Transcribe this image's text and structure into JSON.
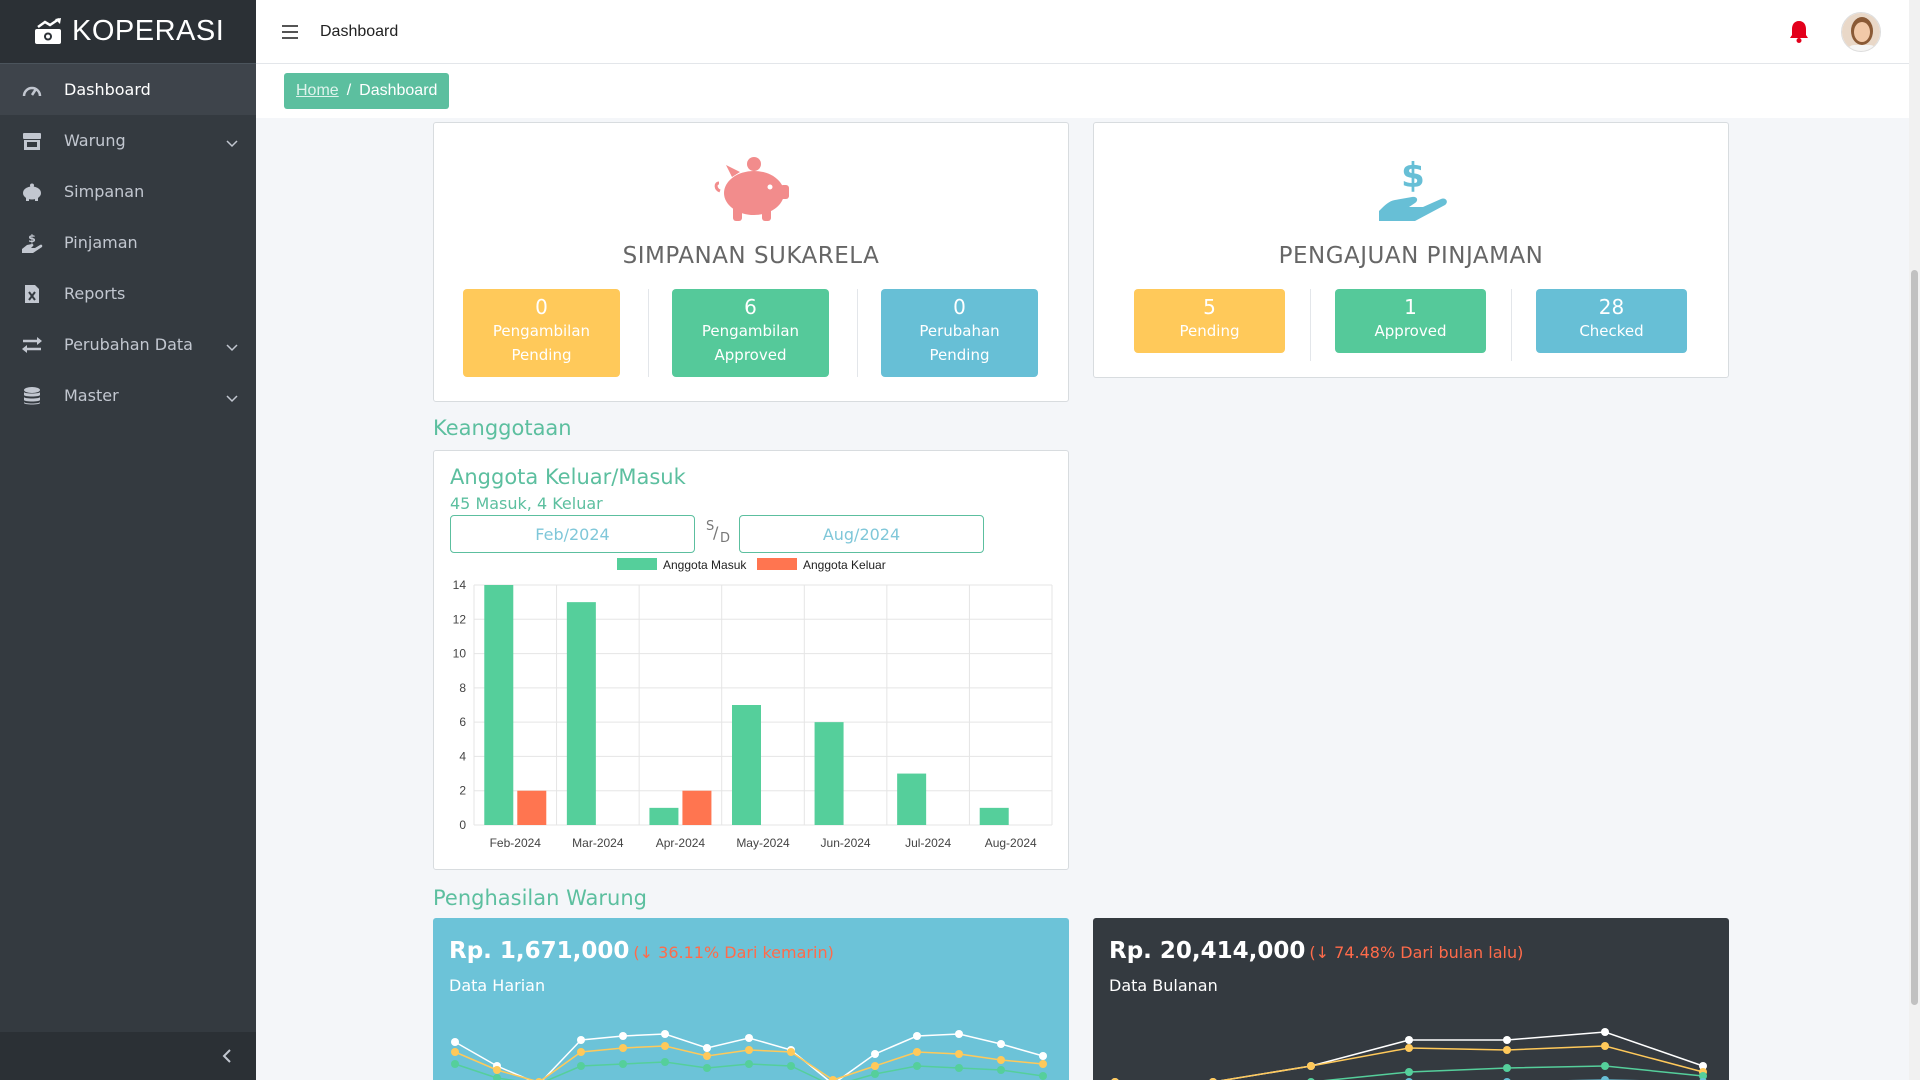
{
  "brand": {
    "name": "KOPERASI"
  },
  "sidebar": {
    "items": [
      {
        "label": "Dashboard",
        "icon": "gauge-icon",
        "active": true,
        "expandable": false
      },
      {
        "label": "Warung",
        "icon": "store-icon",
        "active": false,
        "expandable": true
      },
      {
        "label": "Simpanan",
        "icon": "piggy-bank-icon",
        "active": false,
        "expandable": false
      },
      {
        "label": "Pinjaman",
        "icon": "hand-dollar-icon",
        "active": false,
        "expandable": false
      },
      {
        "label": "Reports",
        "icon": "file-excel-icon",
        "active": false,
        "expandable": false
      },
      {
        "label": "Perubahan Data",
        "icon": "exchange-icon",
        "active": false,
        "expandable": true
      },
      {
        "label": "Master",
        "icon": "database-icon",
        "active": false,
        "expandable": true
      }
    ]
  },
  "topbar": {
    "title": "Dashboard"
  },
  "breadcrumb": {
    "home": "Home",
    "separator": "/",
    "current": "Dashboard"
  },
  "simpanan": {
    "title": "SIMPANAN SUKARELA",
    "stats": [
      {
        "value": "0",
        "line1": "Pengambilan",
        "line2": "Pending",
        "color": "#ffc95a"
      },
      {
        "value": "6",
        "line1": "Pengambilan",
        "line2": "Approved",
        "color": "#55c99a"
      },
      {
        "value": "0",
        "line1": "Perubahan",
        "line2": "Pending",
        "color": "#67bfd6"
      }
    ]
  },
  "pinjaman": {
    "title": "PENGAJUAN PINJAMAN",
    "stats": [
      {
        "value": "5",
        "label": "Pending",
        "color": "#ffc95a"
      },
      {
        "value": "1",
        "label": "Approved",
        "color": "#55c99a"
      },
      {
        "value": "28",
        "label": "Checked",
        "color": "#67bfd6"
      }
    ]
  },
  "keanggotaan": {
    "section_title": "Keanggotaan",
    "card_title": "Anggota Keluar/Masuk",
    "subtitle": "45 Masuk, 4 Keluar",
    "date_from": "Feb/2024",
    "date_sep_top": "S",
    "date_sep_mid": "/",
    "date_sep_bottom": "D",
    "date_to": "Aug/2024"
  },
  "chart_data": {
    "type": "bar",
    "categories": [
      "Feb-2024",
      "Mar-2024",
      "Apr-2024",
      "May-2024",
      "Jun-2024",
      "Jul-2024",
      "Aug-2024"
    ],
    "series": [
      {
        "name": "Anggota Masuk",
        "values": [
          14,
          13,
          1,
          7,
          6,
          3,
          1
        ],
        "color": "#55cf9b"
      },
      {
        "name": "Anggota Keluar",
        "values": [
          2,
          0,
          2,
          0,
          0,
          0,
          0
        ],
        "color": "#ff7550"
      }
    ],
    "yticks": [
      "0",
      "2",
      "4",
      "6",
      "8",
      "10",
      "12",
      "14"
    ],
    "ylim": [
      0,
      14
    ],
    "legend": "top",
    "grid": true
  },
  "warung": {
    "section_title": "Penghasilan Warung",
    "daily": {
      "amount": "Rp. 1,671,000",
      "delta": "(↓ 36.11% Dari kemarin)",
      "label": "Data Harian",
      "bg": "#6cc3d8"
    },
    "monthly": {
      "amount": "Rp. 20,414,000",
      "delta": "(↓ 74.48% Dari bulan lalu)",
      "label": "Data Bulanan",
      "bg": "#343a40"
    }
  }
}
